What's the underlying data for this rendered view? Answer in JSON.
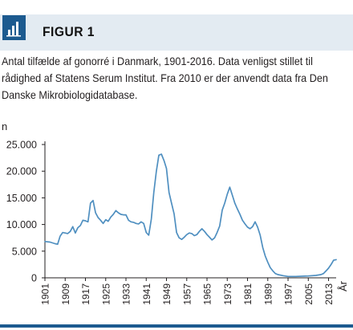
{
  "figure": {
    "label": "FIGUR 1",
    "icon": "bar-chart-icon",
    "accent_color": "#1c5a8f",
    "header_bg": "#e3ebf2"
  },
  "caption": "Antal tilfælde af gonorré i Danmark, 1901-2016. Data venligst stillet til rådighed af Statens Serum Institut. Fra 2010 er der anvendt data fra Den Danske Mikrobiologidatabase.",
  "chart_data": {
    "type": "line",
    "ylabel": "n",
    "xlabel": "År",
    "ylim": [
      0,
      25000
    ],
    "xlim": [
      1901,
      2016
    ],
    "y_ticks": [
      0,
      5000,
      10000,
      15000,
      20000,
      25000
    ],
    "y_tick_labels": [
      "0",
      "5.000",
      "10.000",
      "15.000",
      "20.000",
      "25.000"
    ],
    "x_ticks": [
      1901,
      1909,
      1917,
      1925,
      1933,
      1941,
      1949,
      1957,
      1965,
      1973,
      1981,
      1989,
      1997,
      2005,
      2013
    ],
    "x_tick_labels": [
      "1901",
      "1909",
      "1917",
      "1925",
      "1933",
      "1941",
      "1949",
      "1957",
      "1965",
      "1973",
      "1981",
      "1989",
      "1997",
      "2005",
      "2013"
    ],
    "line_color": "#4f8fc0",
    "grid": false,
    "series": [
      {
        "x": [
          1901,
          1903,
          1905,
          1906,
          1907,
          1908,
          1909,
          1910,
          1911,
          1912,
          1913,
          1914,
          1915,
          1916,
          1917,
          1918,
          1919,
          1920,
          1921,
          1922,
          1923,
          1924,
          1925,
          1926,
          1927,
          1928,
          1929,
          1930,
          1931,
          1932,
          1933,
          1934,
          1935,
          1936,
          1937,
          1938,
          1939,
          1940,
          1941,
          1942,
          1943,
          1944,
          1945,
          1946,
          1947,
          1948,
          1949,
          1950,
          1951,
          1952,
          1953,
          1954,
          1955,
          1956,
          1957,
          1958,
          1959,
          1960,
          1961,
          1962,
          1963,
          1964,
          1965,
          1966,
          1967,
          1968,
          1969,
          1970,
          1971,
          1972,
          1973,
          1974,
          1975,
          1976,
          1977,
          1978,
          1979,
          1980,
          1981,
          1982,
          1983,
          1984,
          1985,
          1986,
          1987,
          1988,
          1989,
          1990,
          1991,
          1992,
          1993,
          1995,
          1997,
          2000,
          2005,
          2008,
          2010,
          2011,
          2012,
          2013,
          2014,
          2015,
          2016
        ],
        "y": [
          6800,
          6700,
          6400,
          6300,
          7800,
          8500,
          8400,
          8300,
          8700,
          9600,
          8400,
          9400,
          9800,
          10800,
          10700,
          10500,
          14000,
          14500,
          12200,
          11300,
          10800,
          10200,
          10900,
          10600,
          11400,
          11900,
          12600,
          12200,
          11900,
          11800,
          11800,
          10800,
          10500,
          10400,
          10200,
          10100,
          10500,
          10200,
          8500,
          8000,
          11000,
          16000,
          20000,
          23000,
          23200,
          22000,
          20500,
          16000,
          14000,
          12000,
          8500,
          7500,
          7200,
          7600,
          8100,
          8400,
          8300,
          7900,
          8100,
          8700,
          9200,
          8700,
          8100,
          7600,
          7100,
          7500,
          8500,
          9700,
          12700,
          14000,
          15700,
          17000,
          15500,
          14000,
          12900,
          11900,
          10800,
          10100,
          9500,
          9200,
          9600,
          10500,
          9500,
          8000,
          5700,
          4100,
          2900,
          1900,
          1300,
          800,
          600,
          400,
          250,
          250,
          350,
          450,
          600,
          800,
          1300,
          1800,
          2500,
          3300,
          3400
        ]
      }
    ]
  }
}
